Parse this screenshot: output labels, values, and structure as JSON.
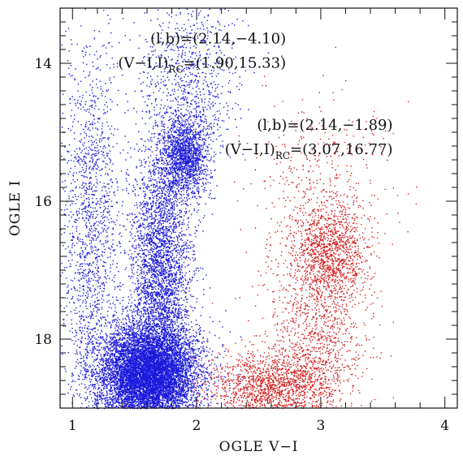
{
  "chart_data": {
    "type": "scatter",
    "xlabel": "OGLE V−I",
    "ylabel": "OGLE I",
    "xlim": [
      0.9,
      4.1
    ],
    "ylim": [
      19.0,
      13.2
    ],
    "y_inverted": true,
    "x_ticks": [
      1,
      2,
      3,
      4
    ],
    "y_ticks": [
      14,
      16,
      18
    ],
    "x_tick_labels": [
      "1",
      "2",
      "3",
      "4"
    ],
    "y_tick_labels": [
      "14",
      "16",
      "18"
    ],
    "grid": false,
    "series": [
      {
        "color": "#1a1adc",
        "point_density": "very high",
        "components": [
          {
            "kind": "main-sequence-turnoff",
            "x_center": 1.6,
            "y_center": 18.5,
            "x_spread": 0.2,
            "y_spread": 0.35,
            "weight": 0.55
          },
          {
            "kind": "giant-branch",
            "x_center": 1.7,
            "y_center": 17.0,
            "x_spread": 0.12,
            "y_spread": 0.9,
            "weight": 0.2
          },
          {
            "kind": "red-clump",
            "x_center": 1.9,
            "y_center": 15.33,
            "x_spread": 0.1,
            "y_spread": 0.3,
            "weight": 0.1
          },
          {
            "kind": "disk-foreground",
            "x_center": 1.15,
            "y_center": 16.5,
            "x_spread": 0.12,
            "y_spread": 1.5,
            "weight": 0.1
          },
          {
            "kind": "upper-giants",
            "x_center": 1.95,
            "y_center": 14.2,
            "x_spread": 0.2,
            "y_spread": 0.6,
            "weight": 0.05
          }
        ]
      },
      {
        "color": "#d42020",
        "point_density": "medium",
        "components": [
          {
            "kind": "main-sequence-turnoff",
            "x_center": 2.6,
            "y_center": 18.7,
            "x_spread": 0.25,
            "y_spread": 0.25,
            "weight": 0.35
          },
          {
            "kind": "giant-branch",
            "x_center": 2.95,
            "y_center": 18.0,
            "x_spread": 0.2,
            "y_spread": 0.6,
            "weight": 0.25
          },
          {
            "kind": "red-clump",
            "x_center": 3.07,
            "y_center": 16.77,
            "x_spread": 0.15,
            "y_spread": 0.35,
            "weight": 0.3
          },
          {
            "kind": "upper-giants",
            "x_center": 3.0,
            "y_center": 15.8,
            "x_spread": 0.3,
            "y_spread": 0.6,
            "weight": 0.1
          }
        ]
      }
    ],
    "annotations": [
      {
        "id": "blue-field",
        "line1": "(l,b)=(2.14,−4.10)",
        "line2_main": "(V−I,I)",
        "line2_sub": "RC",
        "line2_rest": "=(1.90,15.33)",
        "anchor_x": 2.72,
        "anchor_y": 13.9,
        "align": "right"
      },
      {
        "id": "red-field",
        "line1": "(l,b)=(2.14,−1.89)",
        "line2_main": "(V−I,I)",
        "line2_sub": "RC",
        "line2_rest": "=(3.07,16.77)",
        "anchor_x": 3.58,
        "anchor_y": 15.15,
        "align": "right"
      }
    ]
  }
}
